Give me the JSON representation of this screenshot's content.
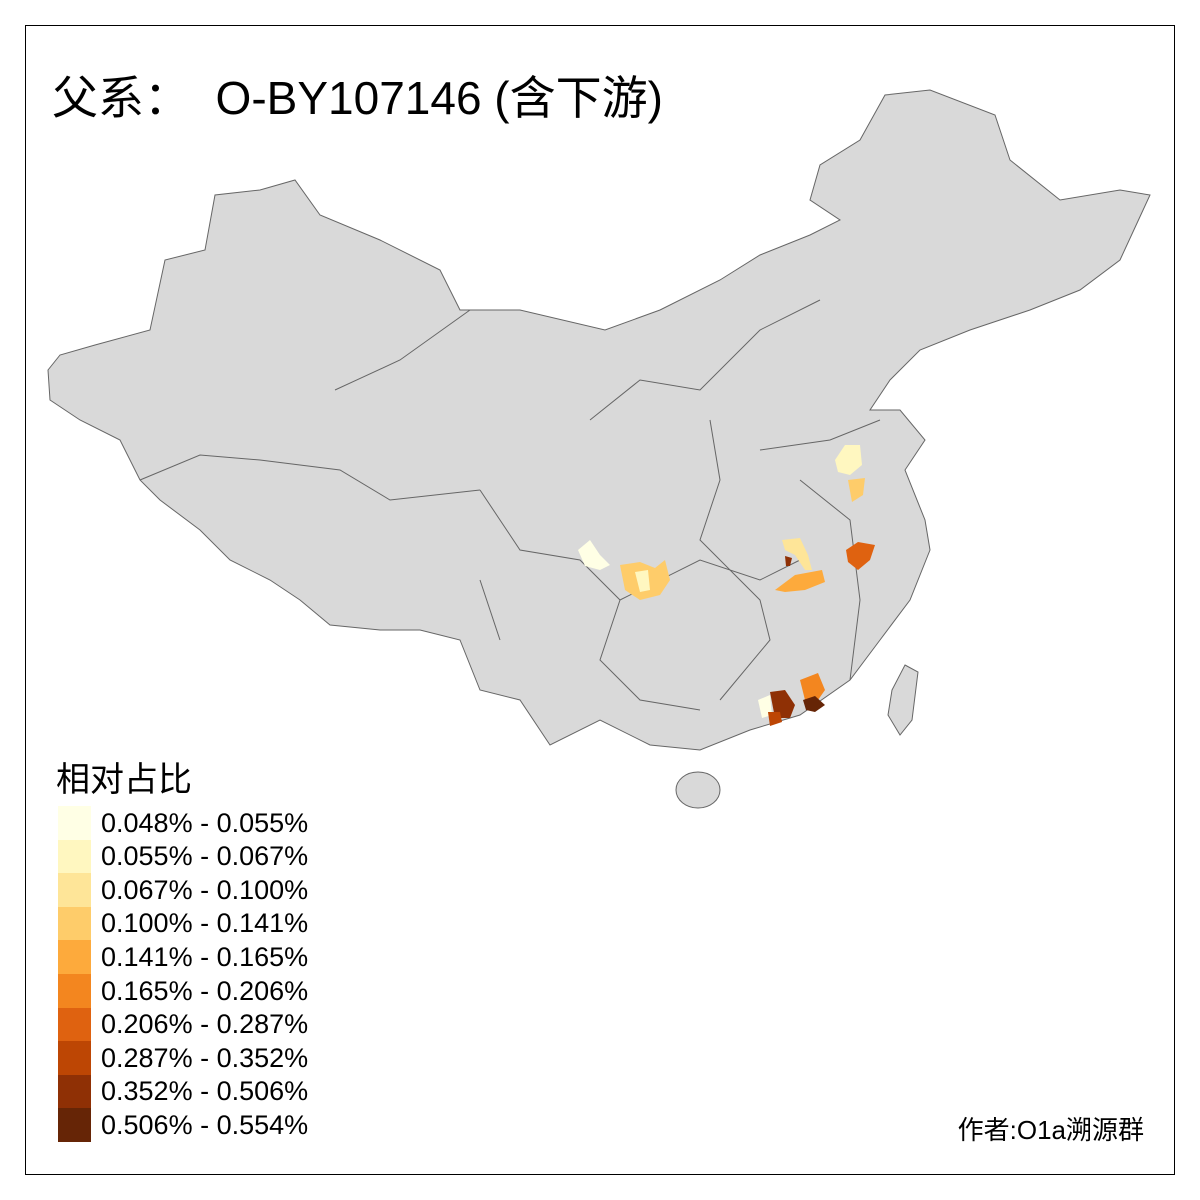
{
  "title": "父系：  O-BY107146 (含下游)",
  "legend": {
    "title": "相对占比",
    "items": [
      {
        "label": "0.048% - 0.055%",
        "color": "#FFFFE5"
      },
      {
        "label": "0.055% - 0.067%",
        "color": "#FFF7C0"
      },
      {
        "label": "0.067% - 0.100%",
        "color": "#FEE598"
      },
      {
        "label": "0.100% - 0.141%",
        "color": "#FECC6A"
      },
      {
        "label": "0.141% - 0.165%",
        "color": "#FDAA3C"
      },
      {
        "label": "0.165% - 0.206%",
        "color": "#F3861F"
      },
      {
        "label": "0.206% - 0.287%",
        "color": "#DF6210"
      },
      {
        "label": "0.287% - 0.352%",
        "color": "#BD4604"
      },
      {
        "label": "0.352% - 0.506%",
        "color": "#8F3005"
      },
      {
        "label": "0.506% - 0.554%",
        "color": "#662506"
      }
    ]
  },
  "map": {
    "base_color": "#D9D9D9",
    "border_color": "#666666"
  },
  "credit": "作者:O1a溯源群"
}
